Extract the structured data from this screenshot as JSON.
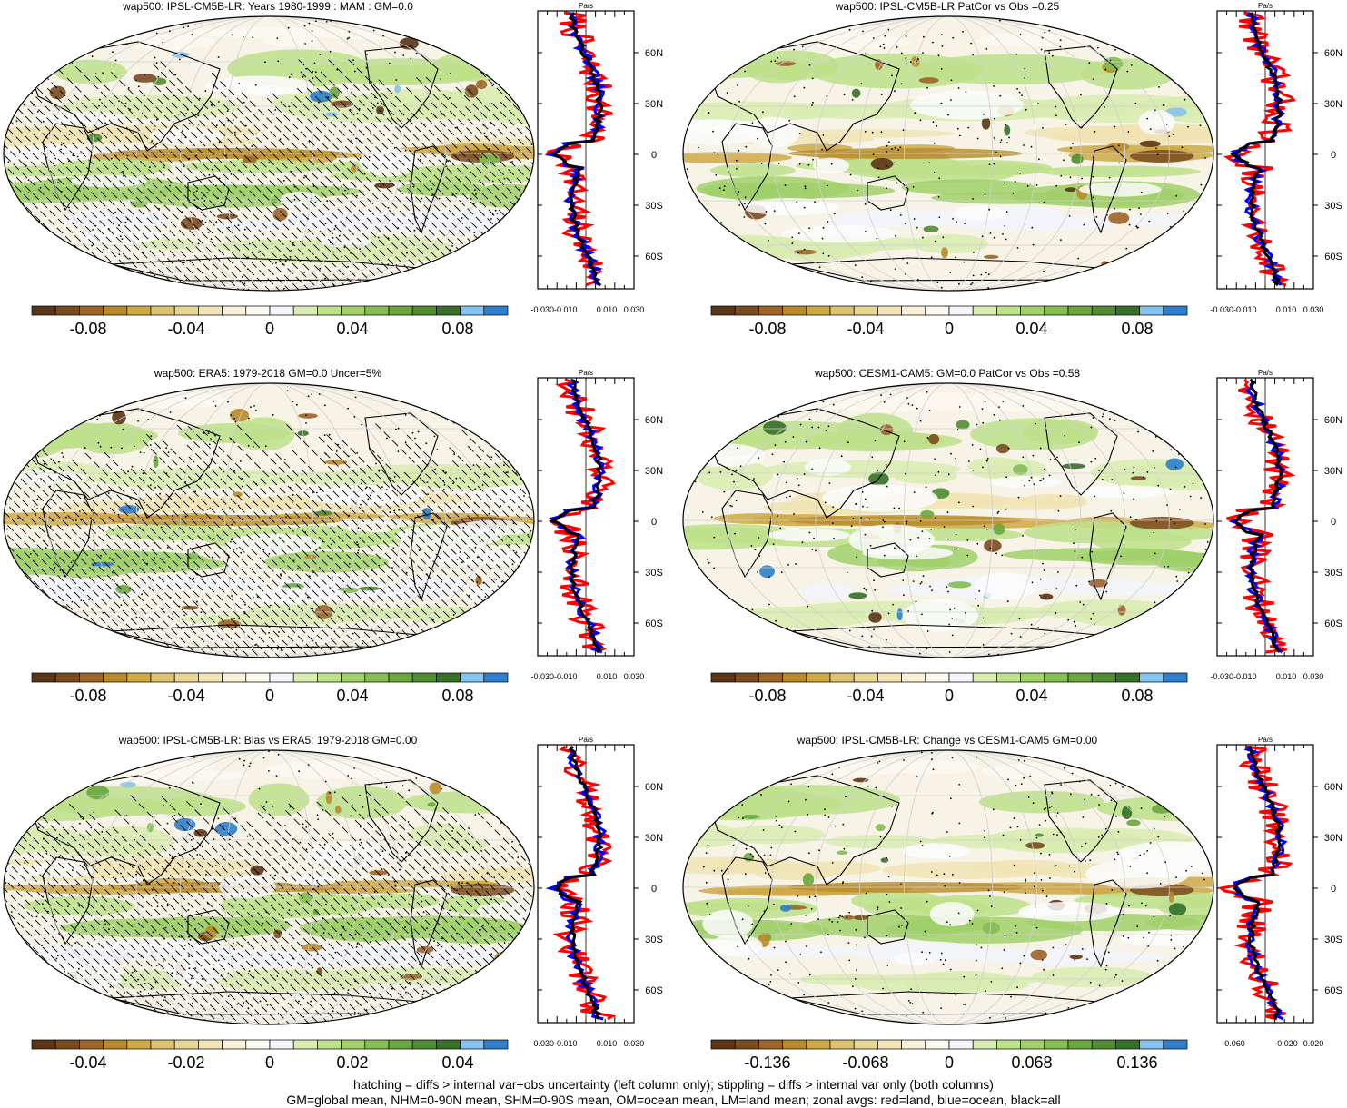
{
  "colors": {
    "scale": [
      "#5a3415",
      "#7a4a1f",
      "#9c6428",
      "#b8892a",
      "#cfa846",
      "#dcc170",
      "#e8d592",
      "#f1e3b4",
      "#f7efd6",
      "#fbf8f0",
      "#f3f5fb",
      "#d8ecb0",
      "#bde08a",
      "#a0d06a",
      "#84bd52",
      "#6aa63e",
      "#4f8c32",
      "#367028",
      "#84c2ef",
      "#2e7ecb"
    ],
    "land_line": "#4a4a4a",
    "zonal_land": "#ff0000",
    "zonal_ocean": "#0000ff",
    "zonal_all": "#000000"
  },
  "zonal_common": {
    "unit": "Pa/s",
    "lat_labels": [
      "60N",
      "30N",
      "0",
      "30S",
      "60S"
    ]
  },
  "panels": [
    {
      "id": "p1",
      "title": "wap500: IPSL-CM5B-LR: Years 1980-1999 : MAM : GM=0.0",
      "hatched": true,
      "colorbar_labels": [
        "-0.08",
        "-0.04",
        "0",
        "0.04",
        "0.08"
      ],
      "zonal_ticks": [
        "-0.030-0.010",
        "0.010",
        "0.030"
      ]
    },
    {
      "id": "p2",
      "title": "wap500: IPSL-CM5B-LR PatCor vs Obs =0.25",
      "hatched": false,
      "colorbar_labels": [
        "-0.08",
        "-0.04",
        "0",
        "0.04",
        "0.08"
      ],
      "zonal_ticks": [
        "-0.030-0.010",
        "0.010",
        "0.030"
      ]
    },
    {
      "id": "p3",
      "title": "wap500: ERA5: 1979-2018 GM=0.0 Uncer=5%",
      "hatched": true,
      "colorbar_labels": [
        "-0.08",
        "-0.04",
        "0",
        "0.04",
        "0.08"
      ],
      "zonal_ticks": [
        "-0.030-0.010",
        "0.010",
        "0.030"
      ]
    },
    {
      "id": "p4",
      "title": "wap500: CESM1-CAM5: GM=0.0 PatCor vs Obs =0.58",
      "hatched": false,
      "colorbar_labels": [
        "-0.08",
        "-0.04",
        "0",
        "0.04",
        "0.08"
      ],
      "zonal_ticks": [
        "-0.030-0.010",
        "0.010",
        "0.030"
      ]
    },
    {
      "id": "p5",
      "title": "wap500: IPSL-CM5B-LR: Bias vs ERA5: 1979-2018 GM=0.00",
      "hatched": true,
      "colorbar_labels": [
        "-0.04",
        "-0.02",
        "0",
        "0.02",
        "0.04"
      ],
      "zonal_ticks": [
        "-0.030-0.010",
        "0.010",
        "0.030"
      ]
    },
    {
      "id": "p6",
      "title": "wap500: IPSL-CM5B-LR: Change vs CESM1-CAM5 GM=0.00",
      "hatched": false,
      "colorbar_labels": [
        "-0.136",
        "-0.068",
        "0",
        "0.068",
        "0.136"
      ],
      "zonal_ticks": [
        "-0.060",
        "-0.020",
        "0.020"
      ]
    }
  ],
  "footer": {
    "line1": "hatching = diffs > internal var+obs uncertainty (left column only); stippling = diffs > internal var only (both columns)",
    "line2": "GM=global mean, NHM=0-90N mean, SHM=0-90S mean, OM=ocean mean, LM=land mean; zonal avgs: red=land, blue=ocean, black=all"
  }
}
